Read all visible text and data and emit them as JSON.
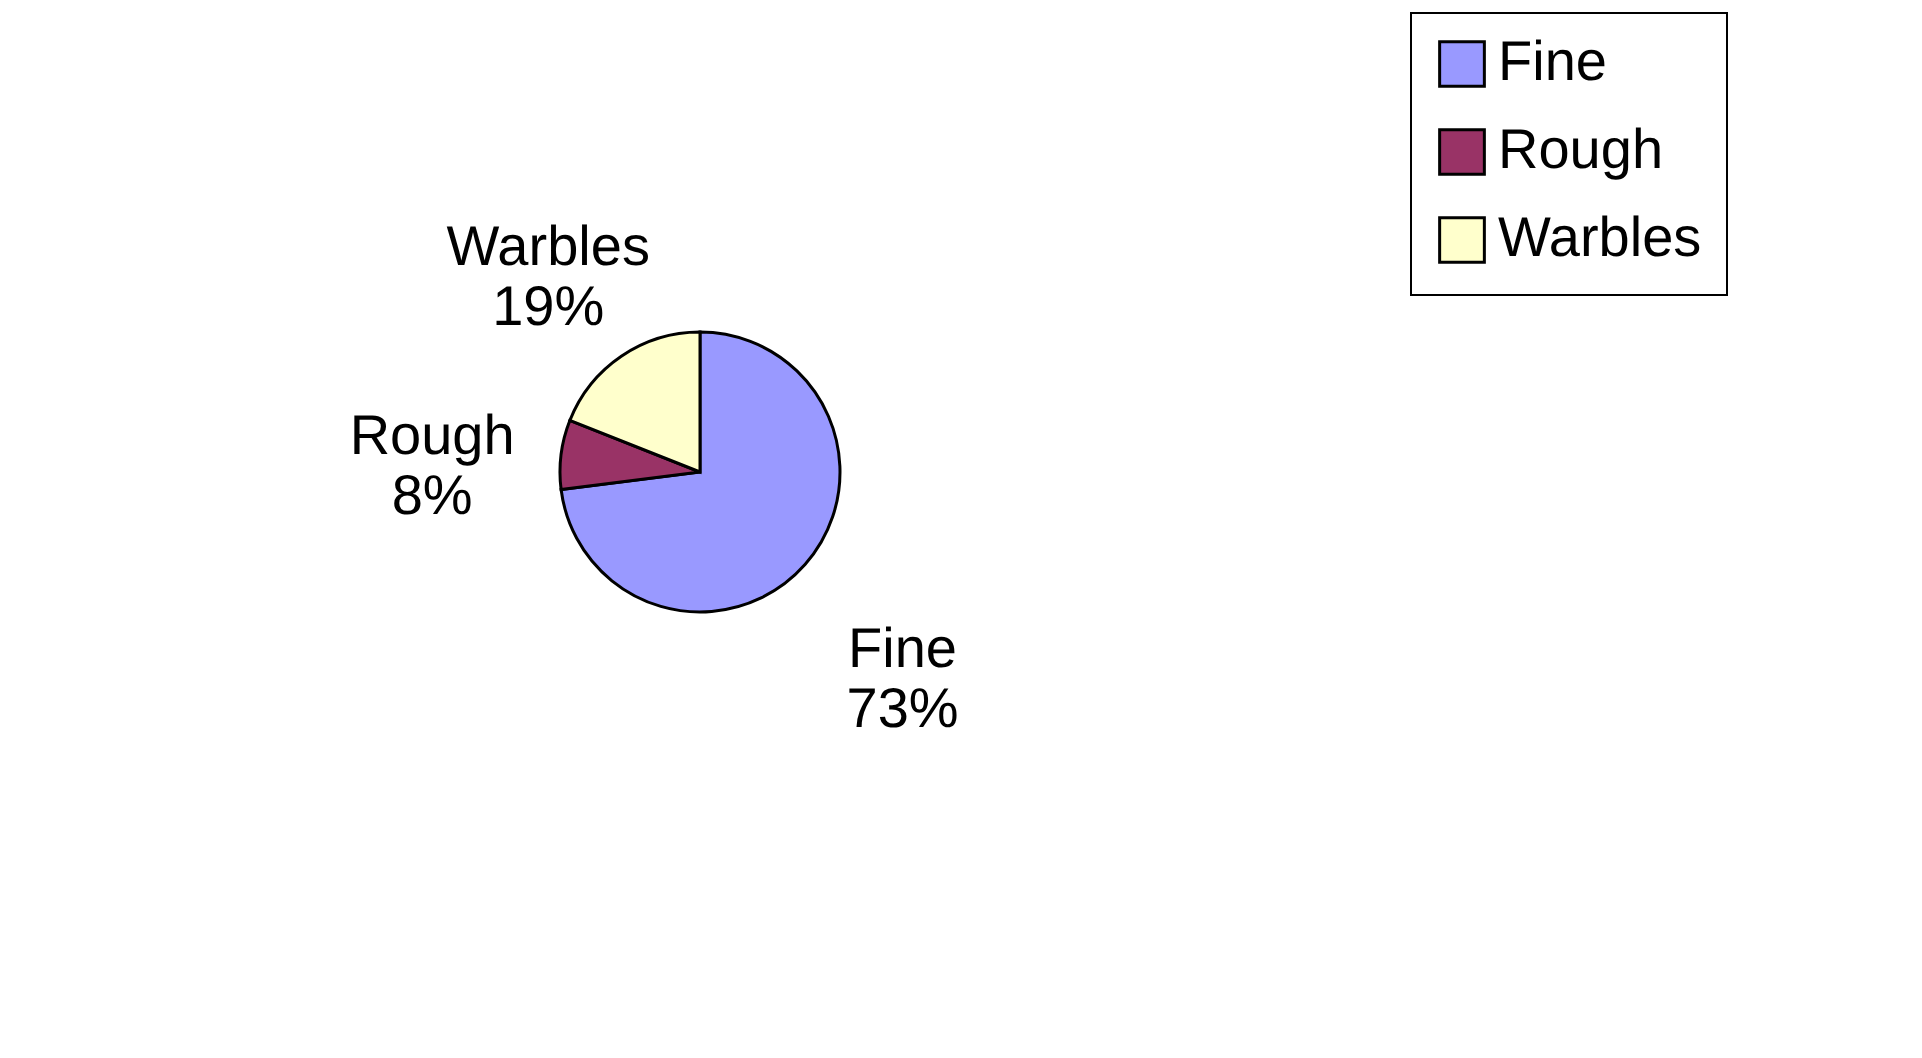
{
  "chart_data": {
    "type": "pie",
    "categories": [
      "Fine",
      "Rough",
      "Warbles"
    ],
    "values": [
      73,
      8,
      19
    ],
    "value_labels": [
      "73%",
      "8%",
      "19%"
    ],
    "colors": [
      "#9999ff",
      "#993366",
      "#ffffcc"
    ],
    "legend": "right"
  }
}
